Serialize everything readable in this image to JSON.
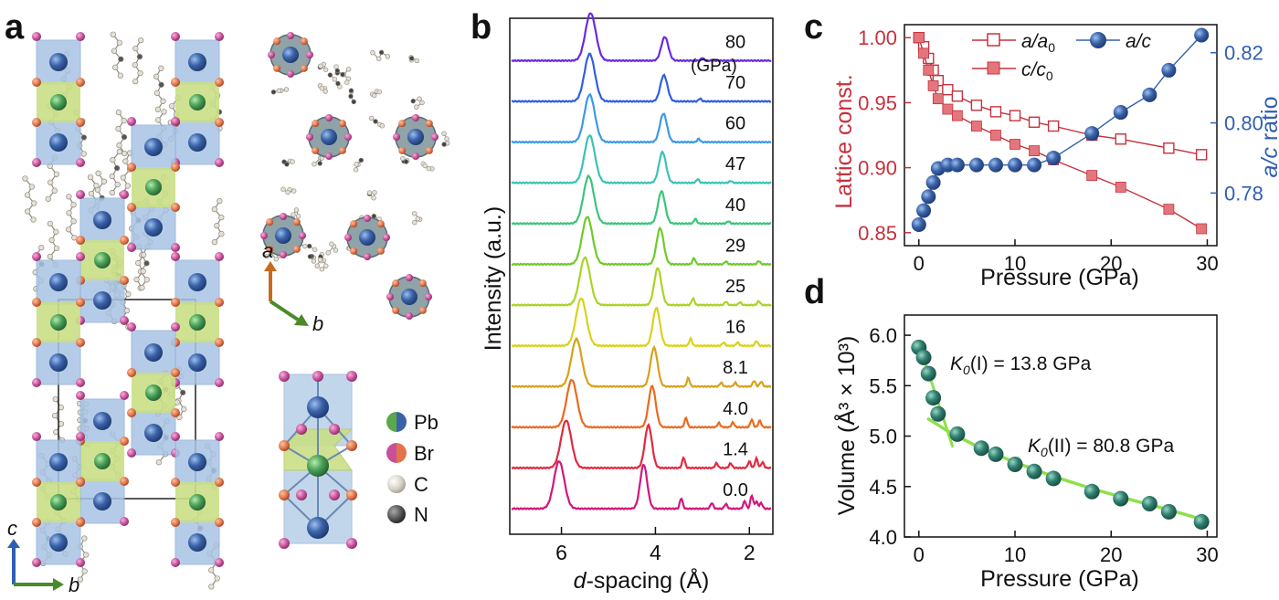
{
  "panels": {
    "a": {
      "letter": "a",
      "axes_main": {
        "c": "c",
        "b": "b"
      },
      "axes_top": {
        "a": "a",
        "b": "b"
      },
      "legend": [
        {
          "label": "Pb",
          "color": "#3b62a8",
          "color2": "#5aa84a"
        },
        {
          "label": "Br",
          "color": "#c84f9a",
          "color2": "#e2744a"
        },
        {
          "label": "C",
          "color": "#d9d4c8"
        },
        {
          "label": "N",
          "color": "#555555"
        }
      ]
    },
    "b": {
      "letter": "b"
    },
    "c": {
      "letter": "c"
    },
    "d": {
      "letter": "d"
    }
  },
  "chart_data": [
    {
      "id": "b",
      "type": "line",
      "title": "",
      "xlabel_prefix": "d",
      "xlabel_rest": "-spacing (Å)",
      "ylabel": "Intensity (a.u.)",
      "xlim": [
        7.1,
        1.5
      ],
      "x_reversed": true,
      "xticks": [
        "6",
        "4",
        "2"
      ],
      "xtick_values": [
        6,
        4,
        2
      ],
      "unit_label": "(GPa)",
      "series": [
        {
          "name": "0.0",
          "color": "#d0177b",
          "peaks": [
            [
              6.05,
              1.0
            ],
            [
              4.25,
              0.93
            ],
            [
              3.45,
              0.22
            ],
            [
              2.8,
              0.12
            ],
            [
              2.5,
              0.1
            ],
            [
              2.1,
              0.16
            ],
            [
              1.95,
              0.28
            ],
            [
              1.85,
              0.15
            ],
            [
              1.75,
              0.12
            ]
          ]
        },
        {
          "name": "1.4",
          "color": "#e3283e",
          "peaks": [
            [
              5.9,
              1.0
            ],
            [
              4.15,
              0.9
            ],
            [
              3.4,
              0.22
            ],
            [
              2.7,
              0.1
            ],
            [
              2.4,
              0.1
            ],
            [
              2.0,
              0.14
            ],
            [
              1.85,
              0.2
            ],
            [
              1.72,
              0.12
            ]
          ]
        },
        {
          "name": "4.0",
          "color": "#ea6a1e",
          "peaks": [
            [
              5.78,
              1.0
            ],
            [
              4.07,
              0.87
            ],
            [
              3.35,
              0.2
            ],
            [
              2.65,
              0.09
            ],
            [
              2.35,
              0.1
            ],
            [
              1.95,
              0.16
            ],
            [
              1.78,
              0.14
            ]
          ]
        },
        {
          "name": "8.1",
          "color": "#d7a21a",
          "peaks": [
            [
              5.68,
              1.0
            ],
            [
              4.03,
              0.82
            ],
            [
              3.3,
              0.18
            ],
            [
              2.6,
              0.08
            ],
            [
              2.3,
              0.08
            ],
            [
              1.9,
              0.12
            ],
            [
              1.75,
              0.1
            ]
          ]
        },
        {
          "name": "16",
          "color": "#d8d21c",
          "peaks": [
            [
              5.58,
              1.0
            ],
            [
              3.98,
              0.8
            ],
            [
              3.25,
              0.15
            ],
            [
              2.55,
              0.07
            ],
            [
              2.25,
              0.07
            ],
            [
              1.85,
              0.1
            ]
          ]
        },
        {
          "name": "25",
          "color": "#a9d424",
          "peaks": [
            [
              5.5,
              1.0
            ],
            [
              3.95,
              0.78
            ],
            [
              3.2,
              0.14
            ],
            [
              2.5,
              0.07
            ],
            [
              2.2,
              0.06
            ],
            [
              1.8,
              0.08
            ]
          ]
        },
        {
          "name": "29",
          "color": "#6ecb2a",
          "peaks": [
            [
              5.45,
              1.0
            ],
            [
              3.9,
              0.76
            ],
            [
              3.18,
              0.13
            ],
            [
              2.5,
              0.06
            ],
            [
              1.8,
              0.07
            ]
          ]
        },
        {
          "name": "40",
          "color": "#3cc47a",
          "peaks": [
            [
              5.42,
              1.0
            ],
            [
              3.87,
              0.68
            ],
            [
              3.15,
              0.1
            ],
            [
              2.45,
              0.05
            ]
          ]
        },
        {
          "name": "47",
          "color": "#3bc2b5",
          "peaks": [
            [
              5.4,
              1.0
            ],
            [
              3.85,
              0.65
            ],
            [
              3.1,
              0.08
            ],
            [
              2.4,
              0.04
            ]
          ]
        },
        {
          "name": "60",
          "color": "#3a9ae6",
          "peaks": [
            [
              5.4,
              1.0
            ],
            [
              3.83,
              0.6
            ],
            [
              3.08,
              0.07
            ]
          ]
        },
        {
          "name": "70",
          "color": "#2f5fe0",
          "peaks": [
            [
              5.4,
              1.0
            ],
            [
              3.82,
              0.55
            ],
            [
              3.05,
              0.06
            ]
          ]
        },
        {
          "name": "80",
          "color": "#6a2ae0",
          "peaks": [
            [
              5.38,
              1.0
            ],
            [
              3.8,
              0.5
            ],
            [
              3.0,
              0.06
            ]
          ]
        }
      ]
    },
    {
      "id": "c",
      "type": "scatter",
      "title": "",
      "xlabel": "Pressure (GPa)",
      "ylabel_left": "Lattice const.",
      "ylabel_right_prefix": "a/c",
      "ylabel_right_rest": " ratio",
      "xlim": [
        -1.5,
        31
      ],
      "ylim_left": [
        0.84,
        1.01
      ],
      "ylim_right": [
        0.765,
        0.828
      ],
      "xticks": [
        "0",
        "10",
        "20",
        "30"
      ],
      "xtick_values": [
        0,
        10,
        20,
        30
      ],
      "yticks_left": [
        "0.85",
        "0.90",
        "0.95",
        "1.00"
      ],
      "ytick_left_values": [
        0.85,
        0.9,
        0.95,
        1.0
      ],
      "yticks_right": [
        "0.78",
        "0.80",
        "0.82"
      ],
      "ytick_right_values": [
        0.78,
        0.8,
        0.82
      ],
      "color_left": "#c8303c",
      "color_right": "#3160b0",
      "legend": [
        {
          "base": "a/a",
          "sub": "0",
          "style": "open-square"
        },
        {
          "base": "c/c",
          "sub": "0",
          "style": "filled-square"
        },
        {
          "base": "a/c",
          "sub": "",
          "style": "sphere"
        }
      ],
      "series": [
        {
          "name": "a/a0",
          "axis": "left",
          "x": [
            0,
            0.5,
            1,
            1.5,
            2,
            3,
            4,
            6,
            8,
            10,
            12,
            14,
            18,
            21,
            26,
            29.4
          ],
          "y": [
            1.0,
            0.993,
            0.984,
            0.975,
            0.967,
            0.96,
            0.955,
            0.948,
            0.943,
            0.94,
            0.935,
            0.932,
            0.925,
            0.922,
            0.915,
            0.91
          ]
        },
        {
          "name": "c/c0",
          "axis": "left",
          "x": [
            0,
            0.5,
            1,
            1.5,
            2,
            3,
            4,
            6,
            8,
            10,
            12,
            14,
            18,
            21,
            26,
            29.4
          ],
          "y": [
            1.0,
            0.988,
            0.975,
            0.963,
            0.953,
            0.945,
            0.94,
            0.932,
            0.925,
            0.918,
            0.913,
            0.906,
            0.894,
            0.885,
            0.868,
            0.853
          ]
        },
        {
          "name": "a/c",
          "axis": "right",
          "x": [
            0,
            0.5,
            1,
            1.5,
            2,
            3,
            4,
            6,
            8,
            10,
            12,
            14,
            18,
            21,
            24,
            26,
            29.4
          ],
          "y": [
            0.771,
            0.775,
            0.779,
            0.783,
            0.787,
            0.788,
            0.788,
            0.788,
            0.788,
            0.788,
            0.788,
            0.79,
            0.797,
            0.803,
            0.808,
            0.815,
            0.825
          ]
        }
      ]
    },
    {
      "id": "d",
      "type": "scatter",
      "title": "",
      "xlabel": "Pressure (GPa)",
      "ylabel": "Volume (Å³ × 10³)",
      "xlim": [
        -1.5,
        31
      ],
      "ylim": [
        4.0,
        6.2
      ],
      "xticks": [
        "0",
        "10",
        "20",
        "30"
      ],
      "xtick_values": [
        0,
        10,
        20,
        30
      ],
      "yticks": [
        "4.0",
        "4.5",
        "5.0",
        "5.5",
        "6.0"
      ],
      "ytick_values": [
        4.0,
        4.5,
        5.0,
        5.5,
        6.0
      ],
      "point_color": "#2f7f6f",
      "fit_color": "#8ee04a",
      "points": {
        "x": [
          0,
          0.5,
          1,
          1.5,
          2,
          4,
          6.5,
          8,
          10,
          12,
          14,
          18,
          21,
          24,
          26,
          29.4
        ],
        "y": [
          5.88,
          5.78,
          5.62,
          5.38,
          5.22,
          5.02,
          4.88,
          4.82,
          4.72,
          4.65,
          4.58,
          4.45,
          4.38,
          4.33,
          4.25,
          4.15
        ]
      },
      "fit_I": {
        "x": [
          0,
          3.5
        ],
        "y": [
          5.92,
          4.9
        ]
      },
      "fit_II": {
        "x": [
          1,
          3,
          6,
          10,
          14,
          18,
          22,
          26,
          30
        ],
        "y": [
          5.17,
          5.05,
          4.9,
          4.74,
          4.6,
          4.48,
          4.37,
          4.27,
          4.16
        ]
      },
      "annotations": [
        {
          "k": "K",
          "ksub": "0",
          "text": "(I) = 13.8 GPa"
        },
        {
          "k": "K",
          "ksub": "0",
          "text": "(II) = 80.8 GPa"
        }
      ]
    }
  ]
}
